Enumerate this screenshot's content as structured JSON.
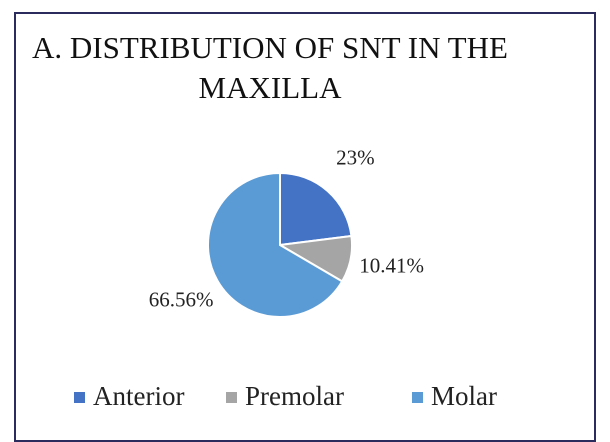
{
  "chart_data": {
    "type": "pie",
    "title": "A. DISTRIBUTION OF SNT IN THE MAXILLA",
    "categories": [
      "Anterior",
      "Premolar",
      "Molar"
    ],
    "values": [
      23,
      10.41,
      66.56
    ],
    "value_labels": [
      "23%",
      "10.41%",
      "66.56%"
    ],
    "colors": [
      "#4472c4",
      "#a5a5a5",
      "#5b9bd5"
    ],
    "legend": "bottom"
  }
}
